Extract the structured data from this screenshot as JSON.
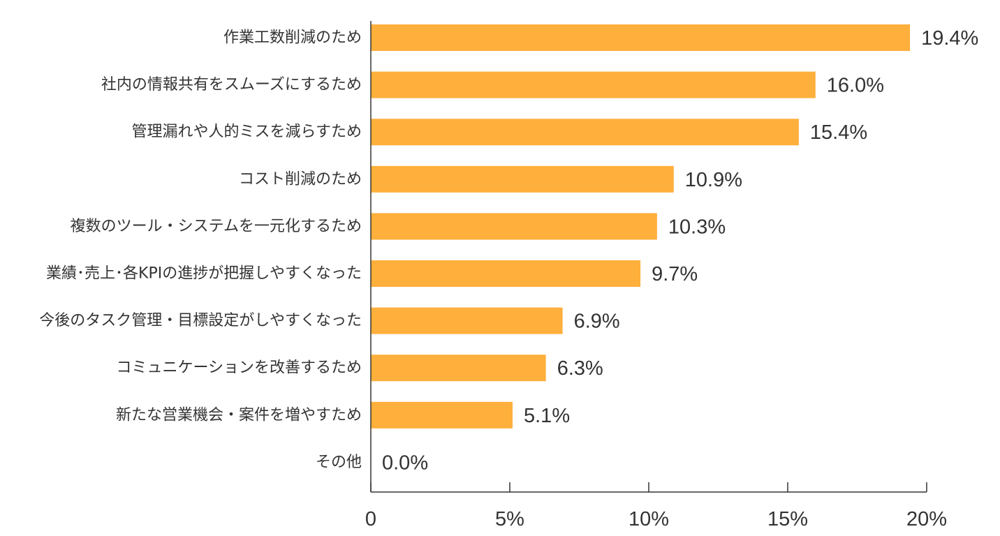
{
  "chart_data": {
    "type": "bar",
    "orientation": "horizontal",
    "title": "",
    "xlabel": "",
    "ylabel": "",
    "categories": [
      "作業工数削減のため",
      "社内の情報共有をスムーズにするため",
      "管理漏れや人的ミスを減らすため",
      "コスト削減のため",
      "複数のツール・システムを一元化するため",
      "業績･売上･各KPIの進捗が把握しやすくなった",
      "今後のタスク管理・目標設定がしやすくなった",
      "コミュニケーションを改善するため",
      "新たな営業機会・案件を増やすため",
      "その他"
    ],
    "values": [
      19.4,
      16.0,
      15.4,
      10.9,
      10.3,
      9.7,
      6.9,
      6.3,
      5.1,
      0.0
    ],
    "value_labels": [
      "19.4%",
      "16.0%",
      "15.4%",
      "10.9%",
      "10.3%",
      "9.7%",
      "6.9%",
      "6.3%",
      "5.1%",
      "0.0%"
    ],
    "xlim": [
      0,
      20
    ],
    "x_ticks": [
      0,
      5,
      10,
      15,
      20
    ],
    "x_tick_labels": [
      "0",
      "5%",
      "10%",
      "15%",
      "20%"
    ],
    "grid": false,
    "legend": "none",
    "bar_color": "#FFAF3B",
    "text_color": "#333333",
    "axis_color": "#333333"
  }
}
